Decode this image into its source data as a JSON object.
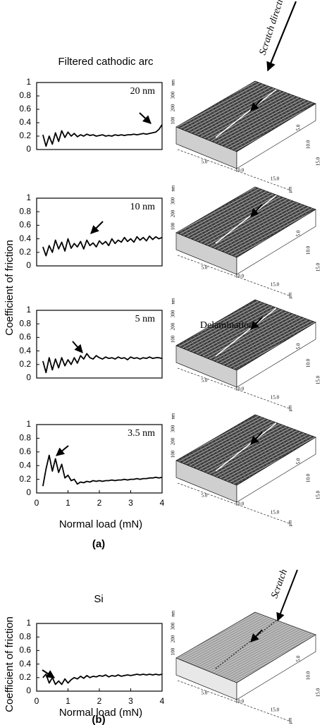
{
  "header": {
    "title": "Filtered cathodic arc",
    "ylabel": "Coefficient of friction",
    "panel_a": "(a)",
    "panel_b": "(b)"
  },
  "afm_annotations": [
    "Scratch direction",
    "Delamination",
    "Scratch"
  ],
  "afm_axis": {
    "z": [
      "300",
      "200",
      "100"
    ],
    "z_unit": "nm",
    "xy": [
      "5.0",
      "10.0",
      "15.0"
    ],
    "xy_unit": "μm"
  },
  "chart_data": [
    {
      "type": "line",
      "label": "20 nm",
      "color": "#000000",
      "xlim": [
        0,
        4
      ],
      "ylim": [
        0,
        1
      ],
      "yticks": [
        0,
        0.2,
        0.4,
        0.6,
        0.8,
        1
      ],
      "x": [
        0.2,
        0.3,
        0.4,
        0.5,
        0.6,
        0.7,
        0.8,
        0.9,
        1.0,
        1.1,
        1.2,
        1.3,
        1.4,
        1.5,
        1.6,
        1.7,
        1.8,
        1.9,
        2.0,
        2.1,
        2.2,
        2.3,
        2.4,
        2.5,
        2.6,
        2.7,
        2.8,
        2.9,
        3.0,
        3.1,
        3.2,
        3.3,
        3.4,
        3.5,
        3.6,
        3.7,
        3.8,
        3.9,
        4.0
      ],
      "values": [
        0.22,
        0.05,
        0.2,
        0.08,
        0.25,
        0.12,
        0.28,
        0.18,
        0.26,
        0.2,
        0.24,
        0.19,
        0.22,
        0.2,
        0.23,
        0.21,
        0.22,
        0.2,
        0.21,
        0.22,
        0.2,
        0.21,
        0.2,
        0.22,
        0.21,
        0.22,
        0.21,
        0.22,
        0.22,
        0.23,
        0.22,
        0.23,
        0.24,
        0.23,
        0.24,
        0.25,
        0.26,
        0.3,
        0.37
      ]
    },
    {
      "type": "line",
      "label": "10 nm",
      "color": "#000000",
      "xlim": [
        0,
        4
      ],
      "ylim": [
        0,
        1
      ],
      "yticks": [
        0,
        0.2,
        0.4,
        0.6,
        0.8,
        1
      ],
      "x": [
        0.2,
        0.3,
        0.4,
        0.5,
        0.6,
        0.7,
        0.8,
        0.9,
        1.0,
        1.1,
        1.2,
        1.3,
        1.4,
        1.5,
        1.6,
        1.7,
        1.8,
        1.9,
        2.0,
        2.1,
        2.2,
        2.3,
        2.4,
        2.5,
        2.6,
        2.7,
        2.8,
        2.9,
        3.0,
        3.1,
        3.2,
        3.3,
        3.4,
        3.5,
        3.6,
        3.7,
        3.8,
        3.9,
        4.0
      ],
      "values": [
        0.28,
        0.15,
        0.3,
        0.2,
        0.38,
        0.25,
        0.35,
        0.22,
        0.4,
        0.26,
        0.33,
        0.28,
        0.36,
        0.25,
        0.38,
        0.3,
        0.34,
        0.28,
        0.37,
        0.32,
        0.36,
        0.3,
        0.4,
        0.33,
        0.38,
        0.35,
        0.42,
        0.36,
        0.4,
        0.35,
        0.43,
        0.38,
        0.42,
        0.37,
        0.44,
        0.39,
        0.43,
        0.4,
        0.42
      ]
    },
    {
      "type": "line",
      "label": "5 nm",
      "color": "#000000",
      "xlim": [
        0,
        4
      ],
      "ylim": [
        0,
        1
      ],
      "yticks": [
        0,
        0.2,
        0.4,
        0.6,
        0.8,
        1
      ],
      "x": [
        0.2,
        0.3,
        0.4,
        0.5,
        0.6,
        0.7,
        0.8,
        0.9,
        1.0,
        1.1,
        1.2,
        1.3,
        1.4,
        1.5,
        1.6,
        1.7,
        1.8,
        1.9,
        2.0,
        2.1,
        2.2,
        2.3,
        2.4,
        2.5,
        2.6,
        2.7,
        2.8,
        2.9,
        3.0,
        3.1,
        3.2,
        3.3,
        3.4,
        3.5,
        3.6,
        3.7,
        3.8,
        3.9,
        4.0
      ],
      "values": [
        0.25,
        0.08,
        0.3,
        0.12,
        0.28,
        0.15,
        0.3,
        0.18,
        0.27,
        0.2,
        0.3,
        0.22,
        0.33,
        0.28,
        0.36,
        0.3,
        0.28,
        0.33,
        0.3,
        0.28,
        0.31,
        0.29,
        0.3,
        0.28,
        0.31,
        0.29,
        0.3,
        0.27,
        0.31,
        0.29,
        0.3,
        0.28,
        0.3,
        0.29,
        0.31,
        0.29,
        0.3,
        0.3,
        0.29
      ]
    },
    {
      "type": "line",
      "label": "3.5 nm",
      "color": "#000000",
      "xlim": [
        0,
        4
      ],
      "ylim": [
        0,
        1
      ],
      "yticks": [
        0,
        0.2,
        0.4,
        0.6,
        0.8,
        1
      ],
      "xticks": [
        0,
        1,
        2,
        3,
        4
      ],
      "xlabel": "Normal load (mN)",
      "x": [
        0.2,
        0.3,
        0.4,
        0.5,
        0.6,
        0.7,
        0.8,
        0.9,
        1.0,
        1.1,
        1.2,
        1.3,
        1.4,
        1.5,
        1.6,
        1.7,
        1.8,
        1.9,
        2.0,
        2.1,
        2.2,
        2.3,
        2.4,
        2.5,
        2.6,
        2.7,
        2.8,
        2.9,
        3.0,
        3.1,
        3.2,
        3.3,
        3.4,
        3.5,
        3.6,
        3.7,
        3.8,
        3.9,
        4.0
      ],
      "values": [
        0.1,
        0.35,
        0.55,
        0.32,
        0.5,
        0.3,
        0.42,
        0.22,
        0.26,
        0.18,
        0.2,
        0.13,
        0.16,
        0.15,
        0.17,
        0.16,
        0.18,
        0.17,
        0.18,
        0.17,
        0.18,
        0.18,
        0.19,
        0.18,
        0.19,
        0.19,
        0.2,
        0.19,
        0.2,
        0.2,
        0.21,
        0.2,
        0.21,
        0.21,
        0.22,
        0.22,
        0.23,
        0.22,
        0.23
      ]
    },
    {
      "type": "line",
      "title": "Si",
      "ylabel": "Coefficient of friction",
      "color": "#000000",
      "xlim": [
        0,
        4
      ],
      "ylim": [
        0,
        1
      ],
      "yticks": [
        0,
        0.2,
        0.4,
        0.6,
        0.8,
        1
      ],
      "xticks": [
        0,
        1,
        2,
        3,
        4
      ],
      "xlabel": "Normal load (mN)",
      "x": [
        0.2,
        0.3,
        0.4,
        0.5,
        0.6,
        0.7,
        0.8,
        0.9,
        1.0,
        1.1,
        1.2,
        1.3,
        1.4,
        1.5,
        1.6,
        1.7,
        1.8,
        1.9,
        2.0,
        2.1,
        2.2,
        2.3,
        2.4,
        2.5,
        2.6,
        2.7,
        2.8,
        2.9,
        3.0,
        3.1,
        3.2,
        3.3,
        3.4,
        3.5,
        3.6,
        3.7,
        3.8,
        3.9,
        4.0
      ],
      "values": [
        0.2,
        0.25,
        0.12,
        0.2,
        0.1,
        0.15,
        0.1,
        0.18,
        0.12,
        0.17,
        0.2,
        0.18,
        0.22,
        0.19,
        0.23,
        0.2,
        0.22,
        0.21,
        0.23,
        0.22,
        0.24,
        0.21,
        0.23,
        0.22,
        0.24,
        0.22,
        0.23,
        0.24,
        0.23,
        0.24,
        0.25,
        0.24,
        0.25,
        0.24,
        0.25,
        0.24,
        0.25,
        0.24,
        0.25
      ]
    }
  ]
}
